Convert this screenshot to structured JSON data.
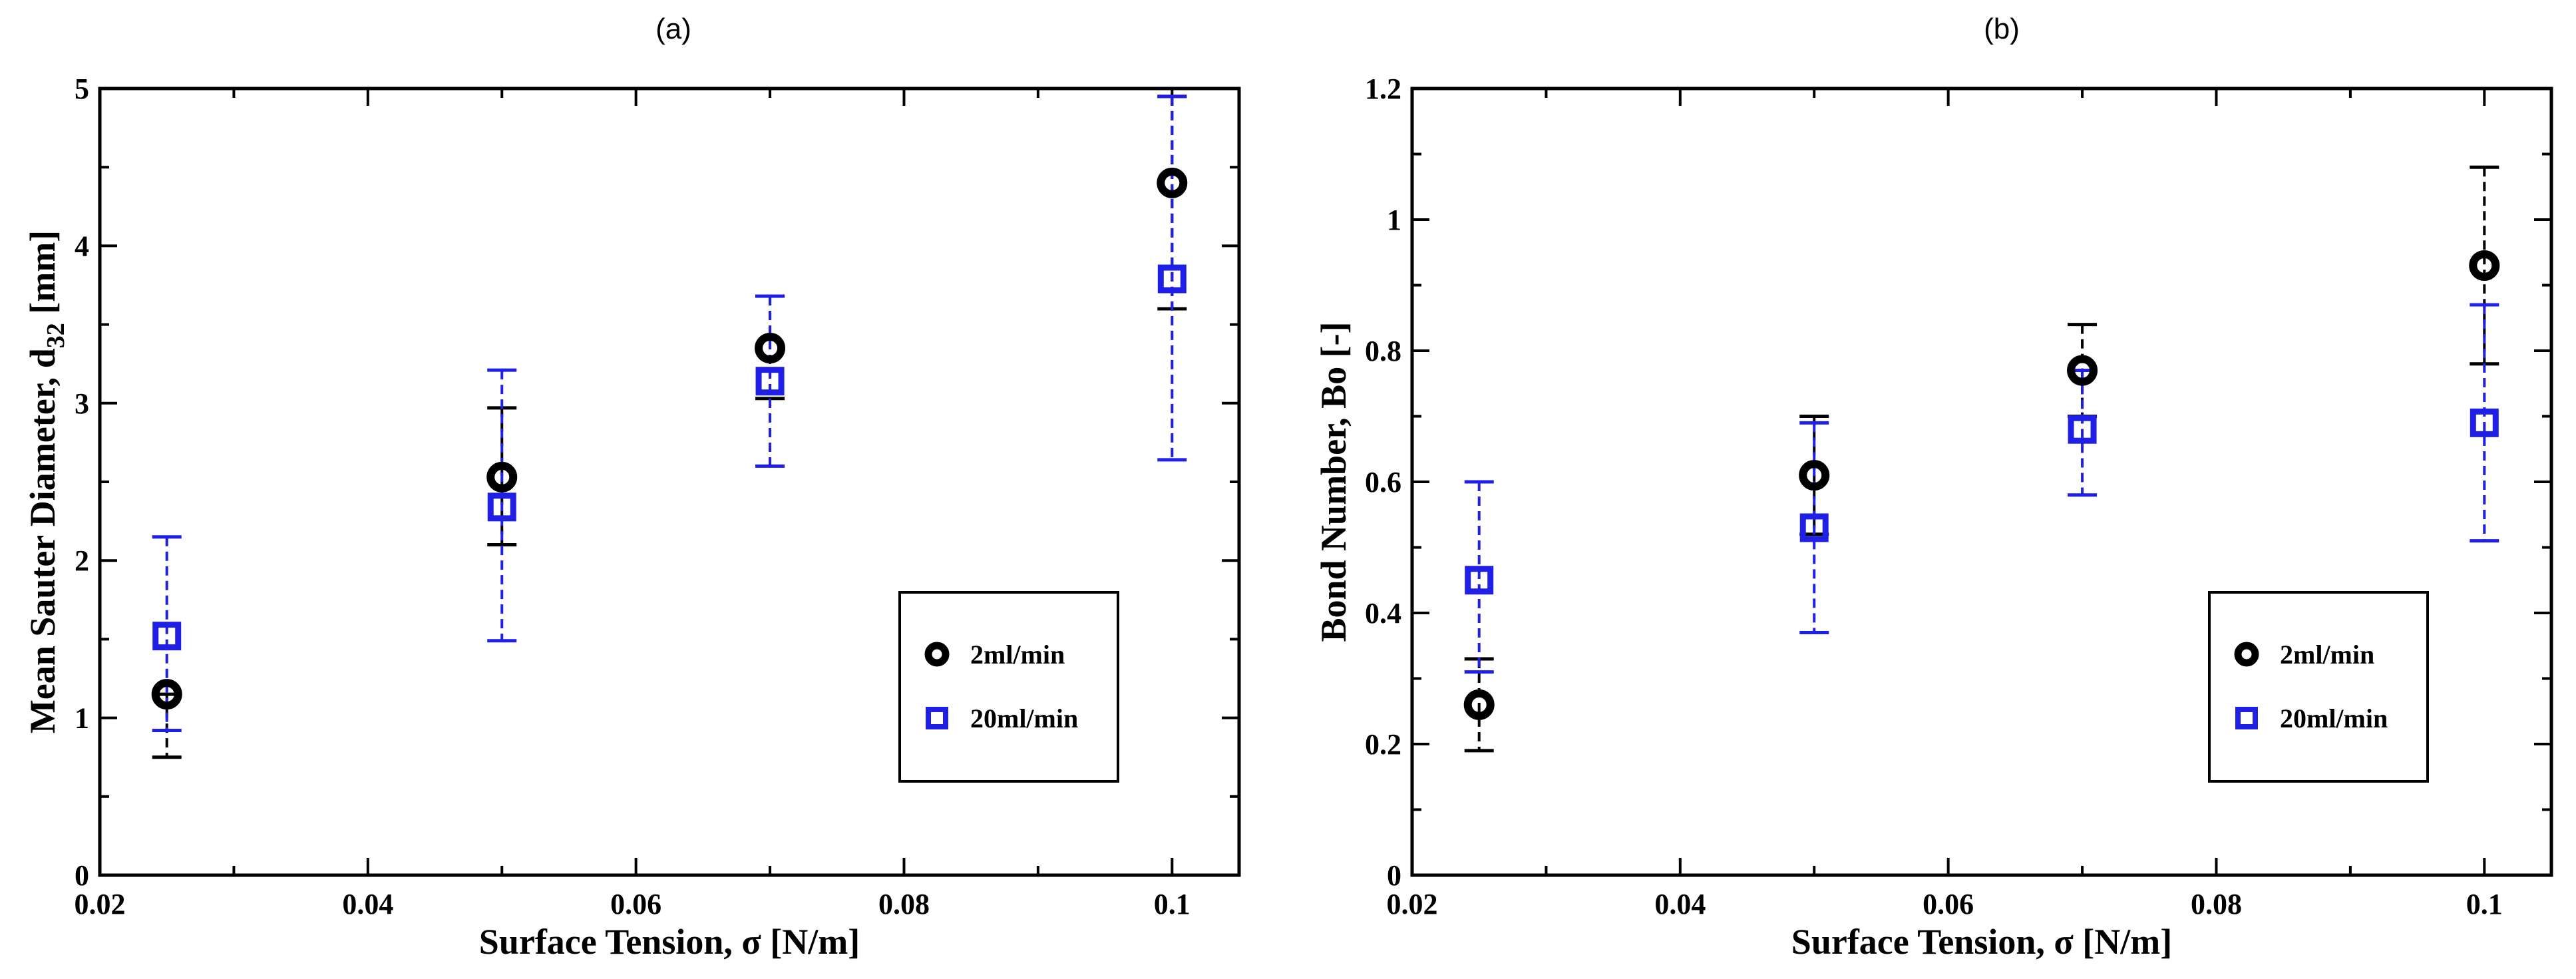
{
  "chart_data": [
    {
      "type": "scatter",
      "panel_label": "(a)",
      "xlabel_main": "Surface Tension, σ [N/m]",
      "ylabel_main": "Mean Sauter Diameter, d",
      "ylabel_sub": "32",
      "ylabel_unit": " [mm]",
      "xlim": [
        0.02,
        0.105
      ],
      "ylim": [
        0,
        5
      ],
      "xticks": [
        0.02,
        0.04,
        0.06,
        0.08,
        0.1
      ],
      "xtick_labels": [
        "0.02",
        "0.04",
        "0.06",
        "0.08",
        "0.1"
      ],
      "yticks": [
        0,
        1,
        2,
        3,
        4,
        5
      ],
      "ytick_labels": [
        "0",
        "1",
        "2",
        "3",
        "4",
        "5"
      ],
      "grid": false,
      "legend_position": "lower-right",
      "series": [
        {
          "name": "2ml/min",
          "marker": "circle",
          "color": "#000000",
          "x": [
            0.025,
            0.05,
            0.07,
            0.1
          ],
          "y": [
            1.15,
            2.53,
            3.35,
            4.4
          ],
          "err_low": [
            0.75,
            2.1,
            3.03,
            3.6
          ],
          "err_high": [
            1.15,
            2.97,
            3.68,
            4.95
          ]
        },
        {
          "name": "20ml/min",
          "marker": "square",
          "color": "#1f1fe6",
          "x": [
            0.025,
            0.05,
            0.07,
            0.1
          ],
          "y": [
            1.52,
            2.34,
            3.14,
            3.79
          ],
          "err_low": [
            0.92,
            1.49,
            2.6,
            2.64
          ],
          "err_high": [
            2.15,
            3.21,
            3.68,
            4.95
          ]
        }
      ]
    },
    {
      "type": "scatter",
      "panel_label": "(b)",
      "xlabel_main": "Surface Tension, σ [N/m]",
      "ylabel_main": "Bond Number, Bo [-]",
      "ylabel_sub": "",
      "ylabel_unit": "",
      "xlim": [
        0.02,
        0.105
      ],
      "ylim": [
        0,
        1.2
      ],
      "xticks": [
        0.02,
        0.04,
        0.06,
        0.08,
        0.1
      ],
      "xtick_labels": [
        "0.02",
        "0.04",
        "0.06",
        "0.08",
        "0.1"
      ],
      "yticks": [
        0,
        0.2,
        0.4,
        0.6,
        0.8,
        1,
        1.2
      ],
      "ytick_labels": [
        "0",
        "0.2",
        "0.4",
        "0.6",
        "0.8",
        "1",
        "1.2"
      ],
      "grid": false,
      "legend_position": "lower-right",
      "series": [
        {
          "name": "2ml/min",
          "marker": "circle",
          "color": "#000000",
          "x": [
            0.025,
            0.05,
            0.07,
            0.1
          ],
          "y": [
            0.26,
            0.61,
            0.77,
            0.93
          ],
          "err_low": [
            0.19,
            0.52,
            0.7,
            0.78
          ],
          "err_high": [
            0.33,
            0.7,
            0.84,
            1.08
          ]
        },
        {
          "name": "20ml/min",
          "marker": "square",
          "color": "#1f1fe6",
          "x": [
            0.025,
            0.05,
            0.07,
            0.1
          ],
          "y": [
            0.45,
            0.53,
            0.68,
            0.69
          ],
          "err_low": [
            0.31,
            0.37,
            0.58,
            0.51
          ],
          "err_high": [
            0.6,
            0.69,
            0.77,
            0.87
          ]
        }
      ]
    }
  ]
}
